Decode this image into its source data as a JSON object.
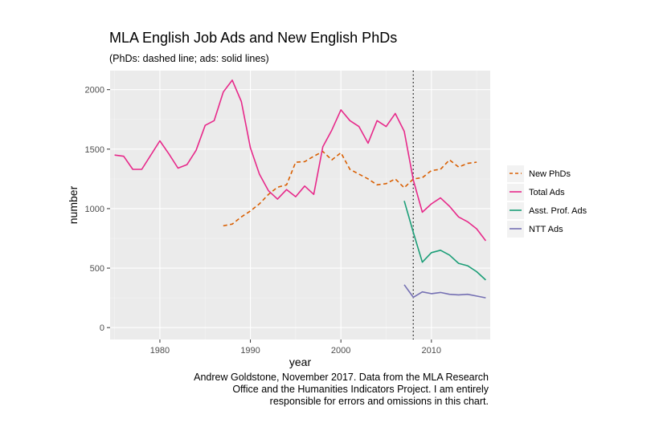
{
  "title": "MLA English Job Ads and New English PhDs",
  "subtitle": "(PhDs: dashed line; ads: solid lines)",
  "caption": [
    "Andrew Goldstone, November 2017. Data from the MLA Research",
    "Office and the Humanities Indicators Project. I am entirely",
    "responsible for errors and omissions in this chart."
  ],
  "chart_data": {
    "type": "line",
    "xlabel": "year",
    "ylabel": "number",
    "xlim": [
      1974.5,
      2016.5
    ],
    "ylim": [
      -100,
      2160
    ],
    "x_ticks": [
      "1980",
      "1990",
      "2000",
      "2010"
    ],
    "y_ticks": [
      "0",
      "500",
      "1000",
      "1500",
      "2000"
    ],
    "grid": true,
    "background": "#ebebeb",
    "legend_position": "right",
    "vline": {
      "x": 2008,
      "style": "dotted"
    },
    "series": [
      {
        "name": "New PhDs",
        "color": "#d95f02",
        "dashed": true,
        "x": [
          1987,
          1988,
          1989,
          1990,
          1991,
          1992,
          1993,
          1994,
          1995,
          1996,
          1997,
          1998,
          1999,
          2000,
          2001,
          2002,
          2003,
          2004,
          2005,
          2006,
          2007,
          2008,
          2009,
          2010,
          2011,
          2012,
          2013,
          2014,
          2015
        ],
        "y": [
          855,
          870,
          930,
          980,
          1040,
          1120,
          1180,
          1200,
          1390,
          1395,
          1440,
          1480,
          1410,
          1470,
          1330,
          1290,
          1250,
          1200,
          1210,
          1250,
          1175,
          1250,
          1260,
          1320,
          1330,
          1410,
          1350,
          1380,
          1390
        ]
      },
      {
        "name": "Total Ads",
        "color": "#e7298a",
        "dashed": false,
        "x": [
          1975,
          1976,
          1977,
          1978,
          1979,
          1980,
          1981,
          1982,
          1983,
          1984,
          1985,
          1986,
          1987,
          1988,
          1989,
          1990,
          1991,
          1992,
          1993,
          1994,
          1995,
          1996,
          1997,
          1998,
          1999,
          2000,
          2001,
          2002,
          2003,
          2004,
          2005,
          2006,
          2007,
          2008,
          2009,
          2010,
          2011,
          2012,
          2013,
          2014,
          2015,
          2016
        ],
        "y": [
          1450,
          1440,
          1330,
          1330,
          1450,
          1570,
          1460,
          1340,
          1370,
          1490,
          1700,
          1740,
          1980,
          2080,
          1900,
          1510,
          1290,
          1150,
          1080,
          1160,
          1100,
          1190,
          1120,
          1520,
          1660,
          1830,
          1740,
          1690,
          1550,
          1740,
          1690,
          1800,
          1650,
          1240,
          970,
          1040,
          1090,
          1020,
          930,
          890,
          830,
          730
        ]
      },
      {
        "name": "Asst. Prof. Ads",
        "color": "#1b9e77",
        "dashed": false,
        "x": [
          2007,
          2008,
          2009,
          2010,
          2011,
          2012,
          2013,
          2014,
          2015,
          2016
        ],
        "y": [
          1065,
          800,
          550,
          630,
          650,
          610,
          540,
          520,
          470,
          400
        ]
      },
      {
        "name": "NTT Ads",
        "color": "#7570b3",
        "dashed": false,
        "x": [
          2007,
          2008,
          2009,
          2010,
          2011,
          2012,
          2013,
          2014,
          2015,
          2016
        ],
        "y": [
          360,
          255,
          300,
          285,
          295,
          280,
          275,
          280,
          265,
          250
        ]
      }
    ]
  }
}
